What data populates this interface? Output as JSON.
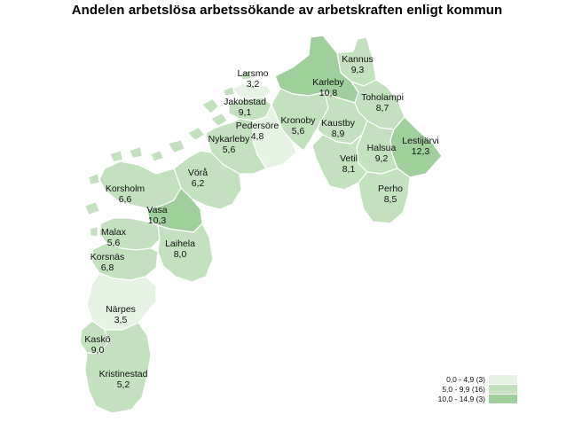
{
  "title": "Andelen arbetslösa arbetssökande av arbetskraften enligt kommun",
  "colors": {
    "low": "#e6f2e3",
    "mid": "#c3e1bf",
    "high": "#9fcf9b",
    "border": "#ffffff"
  },
  "municipalities": [
    {
      "name": "Kannus",
      "value": "9,3",
      "class": "mid"
    },
    {
      "name": "Larsmo",
      "value": "3,2",
      "class": "low"
    },
    {
      "name": "Karleby",
      "value": "10,8",
      "class": "high"
    },
    {
      "name": "Toholampi",
      "value": "8,7",
      "class": "mid"
    },
    {
      "name": "Jakobstad",
      "value": "9,1",
      "class": "mid"
    },
    {
      "name": "Kronoby",
      "value": "5,6",
      "class": "mid"
    },
    {
      "name": "Kaustby",
      "value": "8,9",
      "class": "mid"
    },
    {
      "name": "Pedersöre",
      "value": "4,8",
      "class": "low"
    },
    {
      "name": "Lestijärvi",
      "value": "12,3",
      "class": "high"
    },
    {
      "name": "Nykarleby",
      "value": "5,6",
      "class": "mid"
    },
    {
      "name": "Halsua",
      "value": "9,2",
      "class": "mid"
    },
    {
      "name": "Vetil",
      "value": "8,1",
      "class": "mid"
    },
    {
      "name": "Vörå",
      "value": "6,2",
      "class": "mid"
    },
    {
      "name": "Perho",
      "value": "8,5",
      "class": "mid"
    },
    {
      "name": "Korsholm",
      "value": "6,6",
      "class": "mid"
    },
    {
      "name": "Vasa",
      "value": "10,3",
      "class": "high"
    },
    {
      "name": "Malax",
      "value": "5,6",
      "class": "mid"
    },
    {
      "name": "Laihela",
      "value": "8,0",
      "class": "mid"
    },
    {
      "name": "Korsnäs",
      "value": "6,8",
      "class": "mid"
    },
    {
      "name": "Närpes",
      "value": "3,5",
      "class": "low"
    },
    {
      "name": "Kaskö",
      "value": "9,0",
      "class": "mid"
    },
    {
      "name": "Kristinestad",
      "value": "5,2",
      "class": "mid"
    }
  ],
  "legend": [
    {
      "label": "0,0 - 4,9 (3)",
      "class": "low"
    },
    {
      "label": "5,0 - 9,9 (16)",
      "class": "mid"
    },
    {
      "label": "10,0 - 14,9 (3)",
      "class": "high"
    }
  ]
}
